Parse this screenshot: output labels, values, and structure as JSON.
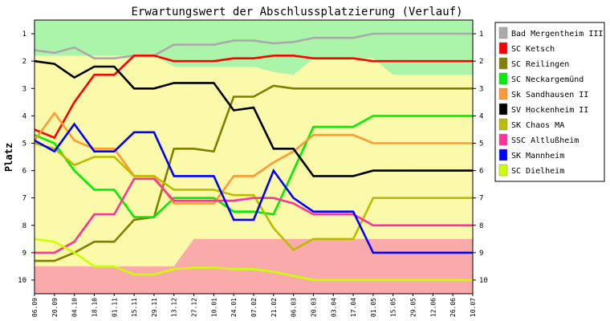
{
  "chart_data": {
    "type": "line",
    "title": "Erwartungswert der Abschlussplatzierung (Verlauf)",
    "ylabel": "Platz",
    "xlabel": "",
    "ylim": [
      10.5,
      0.5
    ],
    "y_inverted": true,
    "y_ticks": [
      1,
      2,
      3,
      4,
      5,
      6,
      7,
      8,
      9,
      10
    ],
    "grid": "off",
    "legend_position": "right",
    "categories": [
      "06.09",
      "20.09",
      "04.10",
      "18.10",
      "01.11",
      "15.11",
      "29.11",
      "13.12",
      "27.12",
      "10.01",
      "24.01",
      "07.02",
      "21.02",
      "06.03",
      "20.03",
      "03.04",
      "17.04",
      "01.05",
      "15.05",
      "29.05",
      "12.06",
      "26.06",
      "10.07"
    ],
    "bands": [
      {
        "name": "top",
        "color": "#aaf5aa",
        "to": [
          1.8,
          1.8,
          1.8,
          1.8,
          1.8,
          1.8,
          1.8,
          2.2,
          2.2,
          2.2,
          2.2,
          2.2,
          2.4,
          2.5,
          1.9,
          1.9,
          1.9,
          1.9,
          2.5,
          2.5,
          2.5,
          2.5,
          2.5
        ]
      },
      {
        "name": "bottom",
        "color": "#faaaaa",
        "from": [
          9.5,
          9.5,
          9.5,
          9.5,
          9.5,
          9.5,
          9.5,
          9.5,
          8.5,
          8.5,
          8.5,
          8.5,
          8.5,
          8.5,
          8.5,
          8.5,
          8.5,
          8.5,
          8.5,
          8.5,
          8.5,
          8.5,
          8.5
        ]
      }
    ],
    "middle_color": "#fafaaa",
    "series": [
      {
        "name": "Bad Mergentheim III",
        "color": "#aaaaaa",
        "values": [
          1.6,
          1.7,
          1.5,
          1.9,
          1.9,
          1.8,
          1.8,
          1.4,
          1.4,
          1.4,
          1.25,
          1.25,
          1.35,
          1.3,
          1.15,
          1.15,
          1.15,
          1.0,
          1.0,
          1.0,
          1.0,
          1.0,
          1.0
        ]
      },
      {
        "name": "SC Ketsch",
        "color": "#ff0000",
        "values": [
          4.5,
          4.8,
          3.5,
          2.5,
          2.5,
          1.8,
          1.8,
          2.0,
          2.0,
          2.0,
          1.9,
          1.9,
          1.8,
          1.8,
          1.9,
          1.9,
          1.9,
          2.0,
          2.0,
          2.0,
          2.0,
          2.0,
          2.0
        ]
      },
      {
        "name": "SC Reilingen",
        "color": "#808000",
        "values": [
          9.3,
          9.3,
          9.0,
          8.6,
          8.6,
          7.8,
          7.7,
          5.2,
          5.2,
          5.3,
          3.3,
          3.3,
          2.9,
          3.0,
          3.0,
          3.0,
          3.0,
          3.0,
          3.0,
          3.0,
          3.0,
          3.0,
          3.0
        ]
      },
      {
        "name": "SC Neckargemünd",
        "color": "#00ee00",
        "values": [
          4.7,
          5.0,
          6.0,
          6.7,
          6.7,
          7.7,
          7.7,
          7.0,
          7.0,
          7.0,
          7.5,
          7.5,
          7.6,
          6.0,
          4.4,
          4.4,
          4.4,
          4.0,
          4.0,
          4.0,
          4.0,
          4.0,
          4.0
        ]
      },
      {
        "name": "Sk Sandhausen II",
        "color": "#ff9933",
        "values": [
          4.9,
          3.9,
          4.9,
          5.2,
          5.2,
          6.2,
          6.2,
          7.2,
          7.2,
          7.2,
          6.2,
          6.2,
          5.7,
          5.3,
          4.7,
          4.7,
          4.7,
          5.0,
          5.0,
          5.0,
          5.0,
          5.0,
          5.0
        ]
      },
      {
        "name": "SV Hockenheim II",
        "color": "#000000",
        "values": [
          2.0,
          2.1,
          2.6,
          2.2,
          2.2,
          3.0,
          3.0,
          2.8,
          2.8,
          2.8,
          3.8,
          3.7,
          5.2,
          5.2,
          6.2,
          6.2,
          6.2,
          6.0,
          6.0,
          6.0,
          6.0,
          6.0,
          6.0
        ]
      },
      {
        "name": "SK Chaos MA",
        "color": "#bbbb00",
        "values": [
          5.0,
          5.2,
          5.8,
          5.5,
          5.5,
          6.2,
          6.2,
          6.7,
          6.7,
          6.7,
          6.9,
          6.9,
          8.1,
          8.9,
          8.5,
          8.5,
          8.5,
          7.0,
          7.0,
          7.0,
          7.0,
          7.0,
          7.0
        ]
      },
      {
        "name": "SSC Altlußheim",
        "color": "#ff3399",
        "values": [
          9.0,
          9.0,
          8.6,
          7.6,
          7.6,
          6.3,
          6.3,
          7.1,
          7.1,
          7.1,
          7.1,
          7.0,
          7.0,
          7.2,
          7.6,
          7.6,
          7.6,
          8.0,
          8.0,
          8.0,
          8.0,
          8.0,
          8.0
        ]
      },
      {
        "name": "SK Mannheim",
        "color": "#0000ff",
        "values": [
          4.9,
          5.3,
          4.3,
          5.3,
          5.3,
          4.6,
          4.6,
          6.2,
          6.2,
          6.2,
          7.8,
          7.8,
          6.0,
          7.0,
          7.5,
          7.5,
          7.5,
          9.0,
          9.0,
          9.0,
          9.0,
          9.0,
          9.0
        ]
      },
      {
        "name": "SC Dielheim",
        "color": "#ccff00",
        "values": [
          8.5,
          8.6,
          9.0,
          9.5,
          9.5,
          9.8,
          9.8,
          9.6,
          9.55,
          9.55,
          9.6,
          9.6,
          9.7,
          9.85,
          10.0,
          10.0,
          10.0,
          10.0,
          10.0,
          10.0,
          10.0,
          10.0,
          10.0
        ]
      }
    ]
  }
}
